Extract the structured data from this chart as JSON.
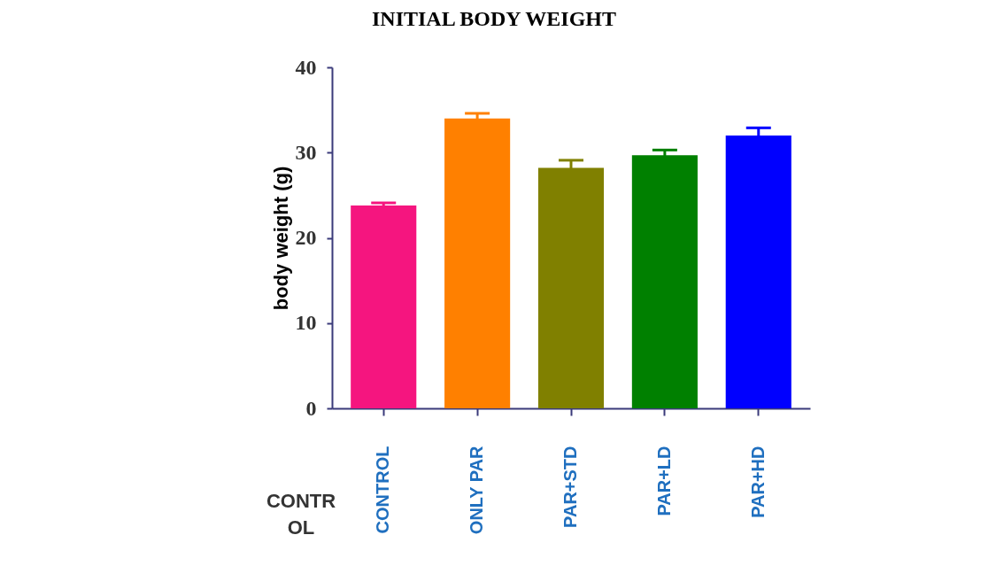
{
  "chart_data": {
    "type": "bar",
    "title": "INITIAL BODY WEIGHT",
    "ylabel": "body weight (g)",
    "categories": [
      "CONTROL",
      "ONLY PAR",
      "PAR+STD",
      "PAR+LD",
      "PAR+HD"
    ],
    "values": [
      23.8,
      34.0,
      28.2,
      29.7,
      32.0
    ],
    "colors": [
      "#f5157f",
      "#ff8000",
      "#808000",
      "#008000",
      "#0000ff"
    ],
    "errors": [
      0.3,
      0.6,
      0.9,
      0.6,
      0.9
    ],
    "ylim": [
      0,
      40
    ],
    "yticks": [
      0,
      10,
      20,
      30,
      40
    ],
    "grid": false,
    "annotations": [
      "CONTR OL"
    ]
  }
}
